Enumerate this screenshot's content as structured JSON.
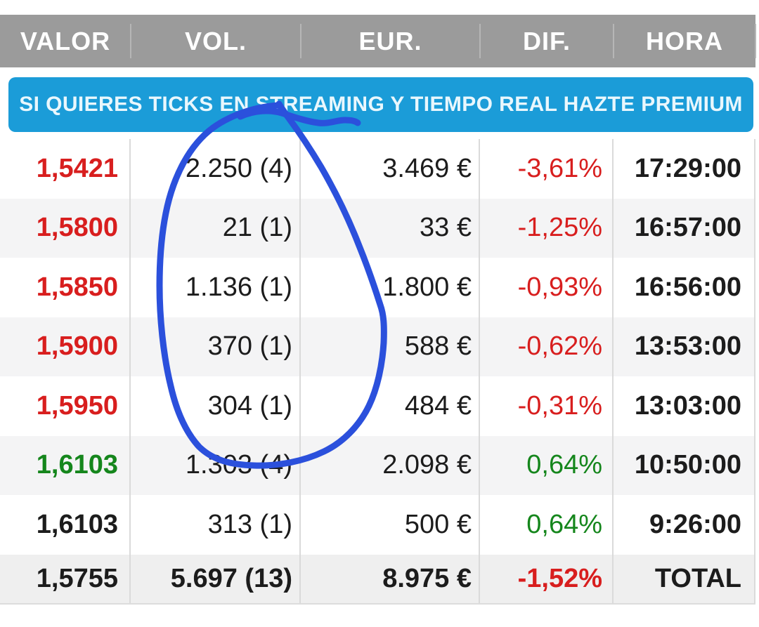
{
  "header": {
    "columns": [
      "VALOR",
      "VOL.",
      "EUR.",
      "DIF.",
      "HORA"
    ]
  },
  "banner": {
    "text": "SI QUIERES TICKS EN STREAMING Y TIEMPO REAL HAZTE PREMIUM"
  },
  "table": {
    "rows": [
      {
        "valor": "1,5421",
        "valor_trend": "down",
        "vol": "2.250 (4)",
        "eur": "3.469 €",
        "dif": "-3,61%",
        "dif_trend": "down",
        "hora": "17:29:00"
      },
      {
        "valor": "1,5800",
        "valor_trend": "down",
        "vol": "21 (1)",
        "eur": "33 €",
        "dif": "-1,25%",
        "dif_trend": "down",
        "hora": "16:57:00"
      },
      {
        "valor": "1,5850",
        "valor_trend": "down",
        "vol": "1.136 (1)",
        "eur": "1.800 €",
        "dif": "-0,93%",
        "dif_trend": "down",
        "hora": "16:56:00"
      },
      {
        "valor": "1,5900",
        "valor_trend": "down",
        "vol": "370 (1)",
        "eur": "588 €",
        "dif": "-0,62%",
        "dif_trend": "down",
        "hora": "13:53:00"
      },
      {
        "valor": "1,5950",
        "valor_trend": "down",
        "vol": "304 (1)",
        "eur": "484 €",
        "dif": "-0,31%",
        "dif_trend": "down",
        "hora": "13:03:00"
      },
      {
        "valor": "1,6103",
        "valor_trend": "up",
        "vol": "1.303 (4)",
        "eur": "2.098 €",
        "dif": "0,64%",
        "dif_trend": "up",
        "hora": "10:50:00"
      },
      {
        "valor": "1,6103",
        "valor_trend": "neutral",
        "vol": "313 (1)",
        "eur": "500 €",
        "dif": "0,64%",
        "dif_trend": "up",
        "hora": "9:26:00"
      }
    ],
    "total": {
      "valor": "1,5755",
      "vol": "5.697 (13)",
      "eur": "8.975 €",
      "dif": "-1,52%",
      "dif_trend": "down",
      "hora_label": "TOTAL"
    }
  },
  "annotation": {
    "type": "hand-drawn-pen-circle",
    "target": "vol-column",
    "color": "#2b50dc"
  },
  "colors": {
    "header_bg": "#9b9b9b",
    "banner_bg": "#1b9cd8",
    "down": "#d81e1e",
    "up": "#15861c",
    "neutral": "#1c1c1c",
    "pen": "#2b50dc"
  }
}
